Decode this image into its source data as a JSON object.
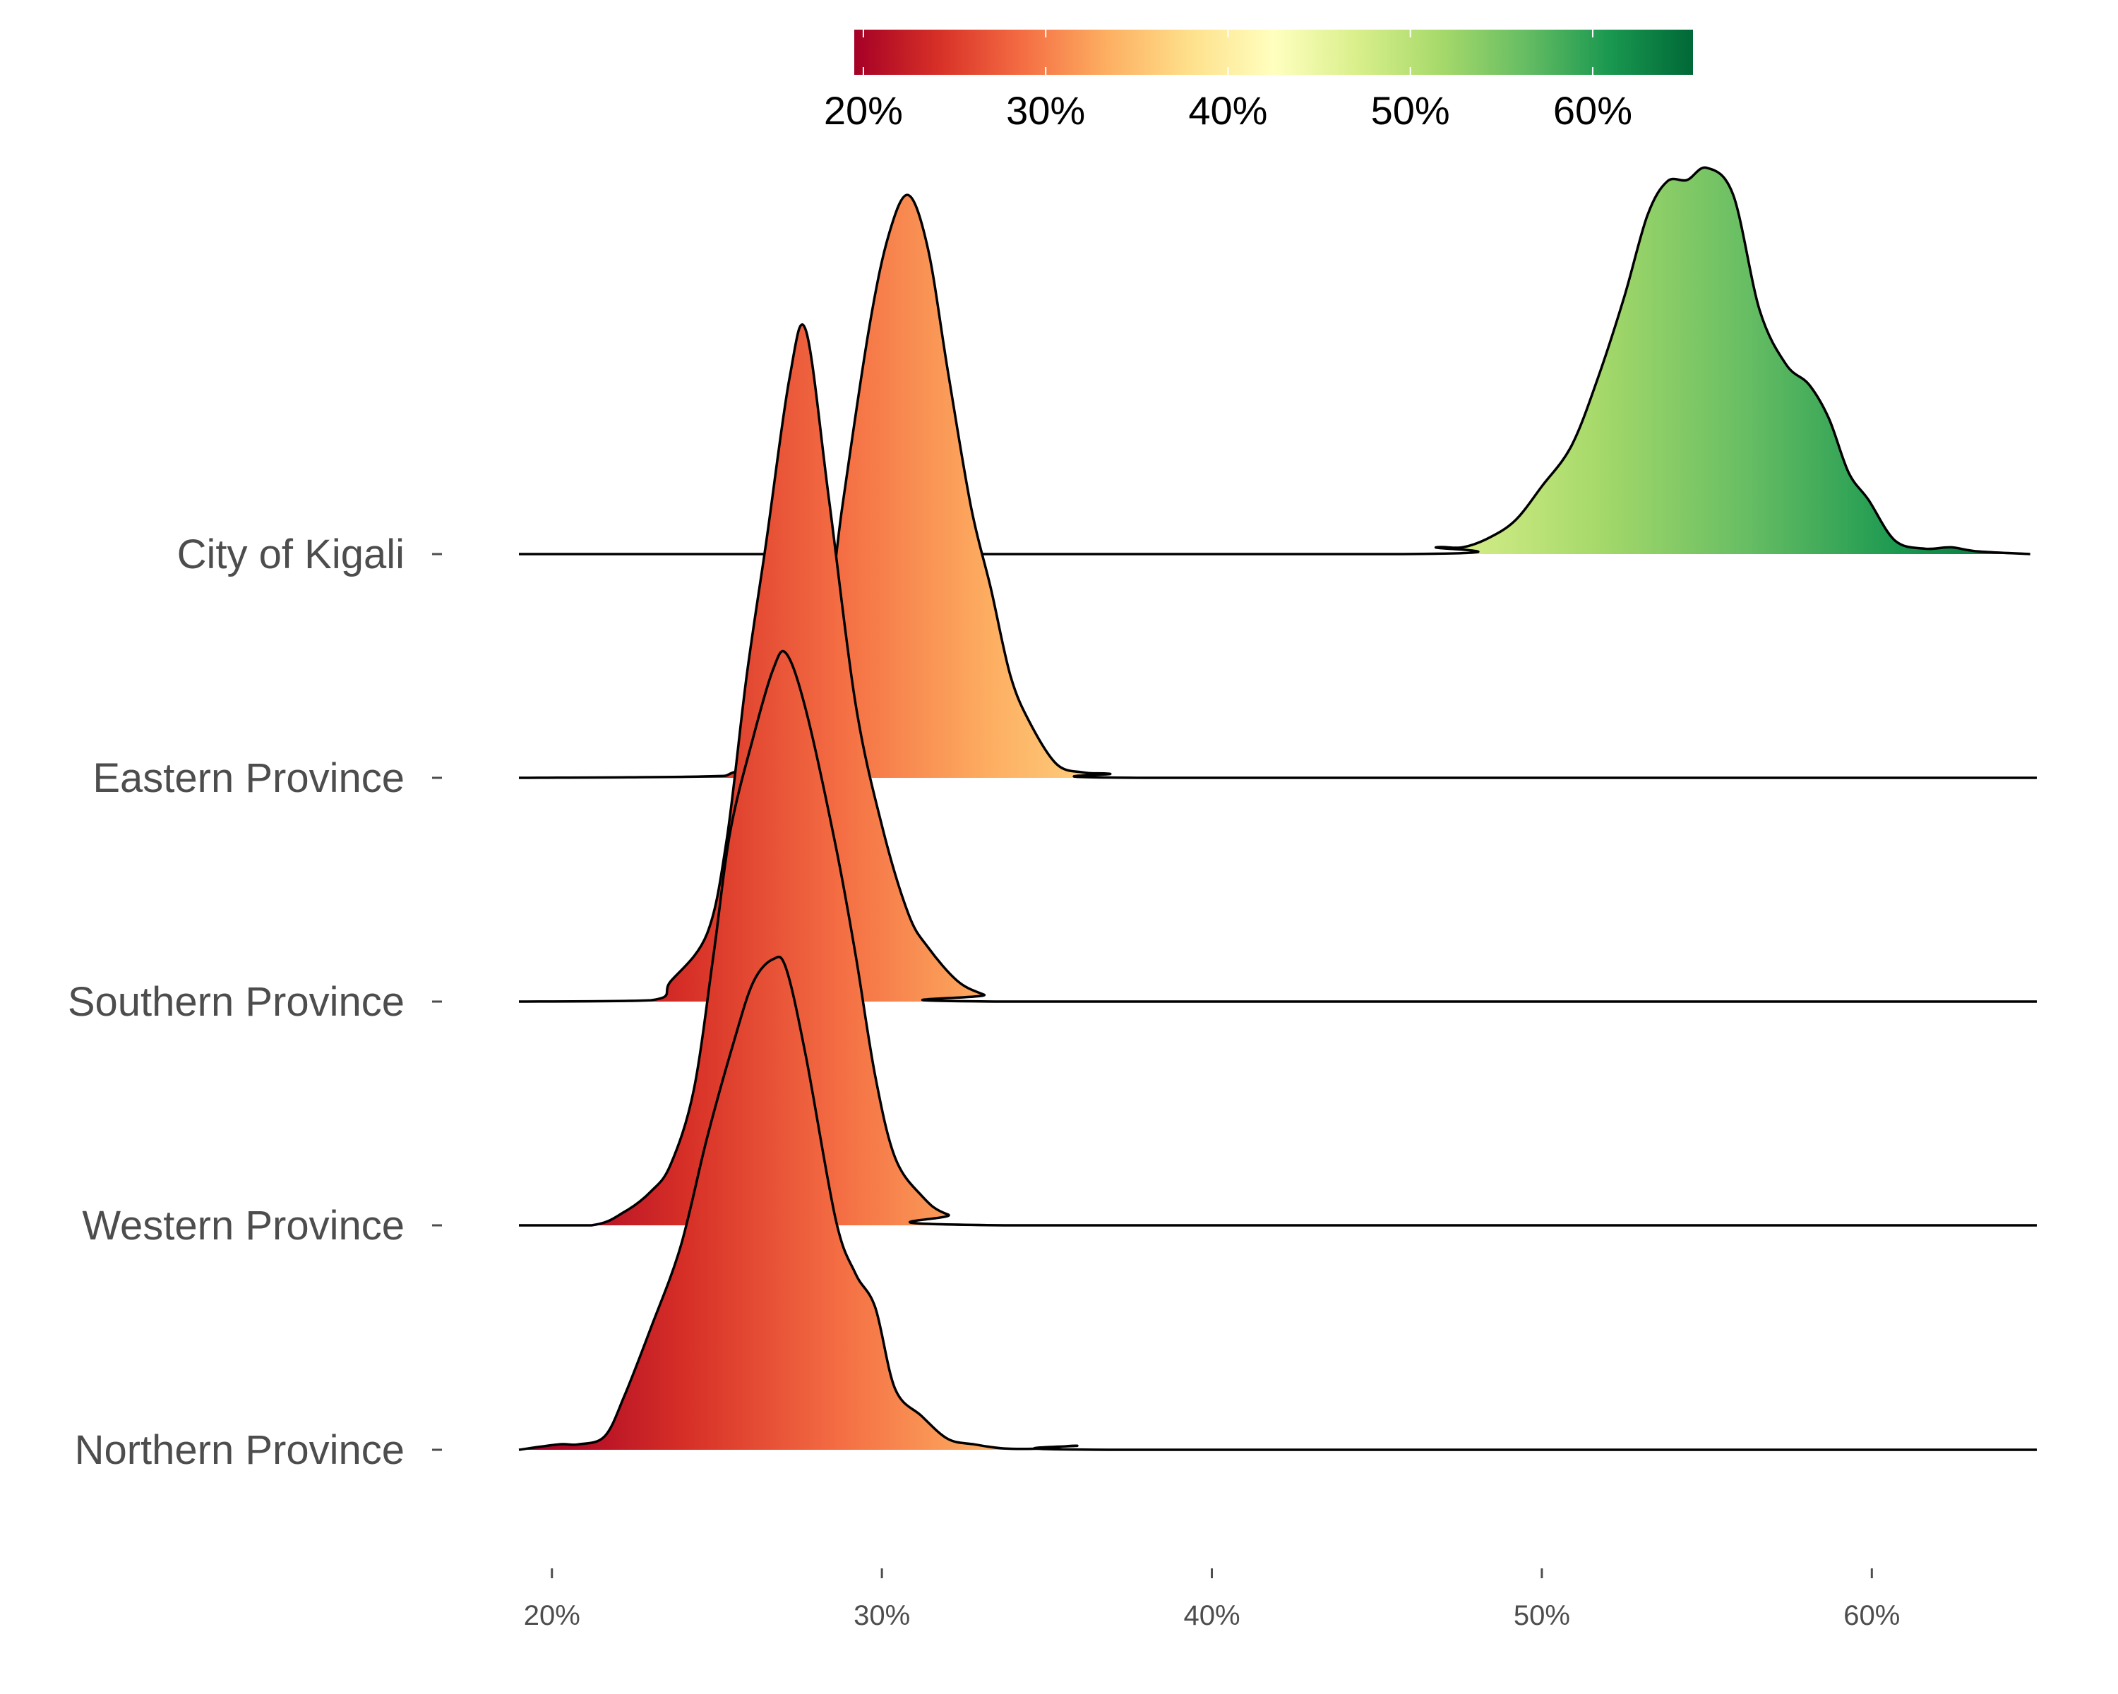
{
  "chart_data": {
    "type": "ridgeline",
    "title": "",
    "xlabel": "",
    "ylabel": "",
    "xlim": [
      19,
      65
    ],
    "x_ticks": [
      "20%",
      "30%",
      "40%",
      "50%",
      "60%"
    ],
    "x_tick_values": [
      20,
      30,
      40,
      50,
      60
    ],
    "colorbar": {
      "position": "top",
      "range": [
        19.5,
        65.5
      ],
      "tick_values": [
        20,
        30,
        40,
        50,
        60
      ],
      "tick_labels": [
        "20%",
        "30%",
        "40%",
        "50%",
        "60%"
      ],
      "colors": [
        "#a50026",
        "#d73027",
        "#f46d43",
        "#fdae61",
        "#fee08b",
        "#ffffbf",
        "#d9ef8b",
        "#a6d96a",
        "#66bd63",
        "#1a9850",
        "#006837"
      ]
    },
    "series": [
      {
        "name": "City of Kigali",
        "points": [
          [
            19,
            0
          ],
          [
            45.8,
            0
          ],
          [
            46.8,
            0.05
          ],
          [
            47.6,
            0.05
          ],
          [
            48.4,
            0.12
          ],
          [
            49.2,
            0.25
          ],
          [
            50,
            0.5
          ],
          [
            50.9,
            0.8
          ],
          [
            51.7,
            1.3
          ],
          [
            52.5,
            1.9
          ],
          [
            53.2,
            2.5
          ],
          [
            53.8,
            2.75
          ],
          [
            54.4,
            2.76
          ],
          [
            55,
            2.85
          ],
          [
            55.8,
            2.65
          ],
          [
            56.6,
            1.8
          ],
          [
            57.4,
            1.4
          ],
          [
            58.1,
            1.25
          ],
          [
            58.7,
            1.0
          ],
          [
            59.3,
            0.6
          ],
          [
            59.9,
            0.4
          ],
          [
            60.7,
            0.1
          ],
          [
            61.6,
            0.04
          ],
          [
            62.4,
            0.05
          ],
          [
            63.2,
            0.02
          ],
          [
            64.8,
            0
          ]
        ]
      },
      {
        "name": "Eastern Province",
        "points": [
          [
            19,
            0
          ],
          [
            24.5,
            0.01
          ],
          [
            25.5,
            0.04
          ],
          [
            26.7,
            0.2
          ],
          [
            28,
            0.6
          ],
          [
            28.8,
            2.0
          ],
          [
            29.6,
            3.3
          ],
          [
            30.2,
            4.0
          ],
          [
            30.8,
            4.3
          ],
          [
            31.4,
            3.9
          ],
          [
            32,
            3.0
          ],
          [
            32.7,
            2.0
          ],
          [
            33.3,
            1.4
          ],
          [
            33.9,
            0.75
          ],
          [
            34.5,
            0.4
          ],
          [
            35.3,
            0.1
          ],
          [
            36.1,
            0.04
          ],
          [
            36.9,
            0.03
          ],
          [
            38.2,
            0
          ],
          [
            65,
            0
          ]
        ]
      },
      {
        "name": "Southern Province",
        "points": [
          [
            19,
            0
          ],
          [
            23,
            0.01
          ],
          [
            23.6,
            0.15
          ],
          [
            24.7,
            0.5
          ],
          [
            25.3,
            1.2
          ],
          [
            25.9,
            2.4
          ],
          [
            26.5,
            3.4
          ],
          [
            27.2,
            4.6
          ],
          [
            27.7,
            4.95
          ],
          [
            28.4,
            3.7
          ],
          [
            29.2,
            2.2
          ],
          [
            30,
            1.3
          ],
          [
            30.8,
            0.65
          ],
          [
            31.4,
            0.4
          ],
          [
            32.3,
            0.15
          ],
          [
            33.1,
            0.05
          ],
          [
            33.7,
            0
          ],
          [
            65,
            0
          ]
        ]
      },
      {
        "name": "Western Province",
        "points": [
          [
            19,
            0
          ],
          [
            21.2,
            0
          ],
          [
            22.2,
            0.1
          ],
          [
            23,
            0.25
          ],
          [
            23.6,
            0.45
          ],
          [
            24.3,
            1.0
          ],
          [
            24.9,
            2.0
          ],
          [
            25.4,
            2.9
          ],
          [
            26.1,
            3.6
          ],
          [
            26.7,
            4.1
          ],
          [
            27.1,
            4.22
          ],
          [
            27.7,
            3.8
          ],
          [
            28.6,
            2.8
          ],
          [
            29.2,
            2.0
          ],
          [
            29.8,
            1.1
          ],
          [
            30.4,
            0.5
          ],
          [
            31.2,
            0.22
          ],
          [
            32,
            0.08
          ],
          [
            33.7,
            0
          ],
          [
            65,
            0
          ]
        ]
      },
      {
        "name": "Northern Province",
        "points": [
          [
            19,
            0
          ],
          [
            20.2,
            0.04
          ],
          [
            20.8,
            0.04
          ],
          [
            21.6,
            0.1
          ],
          [
            22.2,
            0.4
          ],
          [
            23,
            0.9
          ],
          [
            23.9,
            1.5
          ],
          [
            24.7,
            2.3
          ],
          [
            25.5,
            3.0
          ],
          [
            26.1,
            3.45
          ],
          [
            26.7,
            3.62
          ],
          [
            27.1,
            3.55
          ],
          [
            27.7,
            2.9
          ],
          [
            28.6,
            1.7
          ],
          [
            29.2,
            1.3
          ],
          [
            29.8,
            1.05
          ],
          [
            30.4,
            0.45
          ],
          [
            31.2,
            0.25
          ],
          [
            32,
            0.08
          ],
          [
            32.8,
            0.04
          ],
          [
            33.7,
            0.01
          ],
          [
            34.9,
            0.01
          ],
          [
            35.9,
            0.03
          ],
          [
            37,
            0
          ],
          [
            65,
            0
          ]
        ]
      }
    ]
  }
}
